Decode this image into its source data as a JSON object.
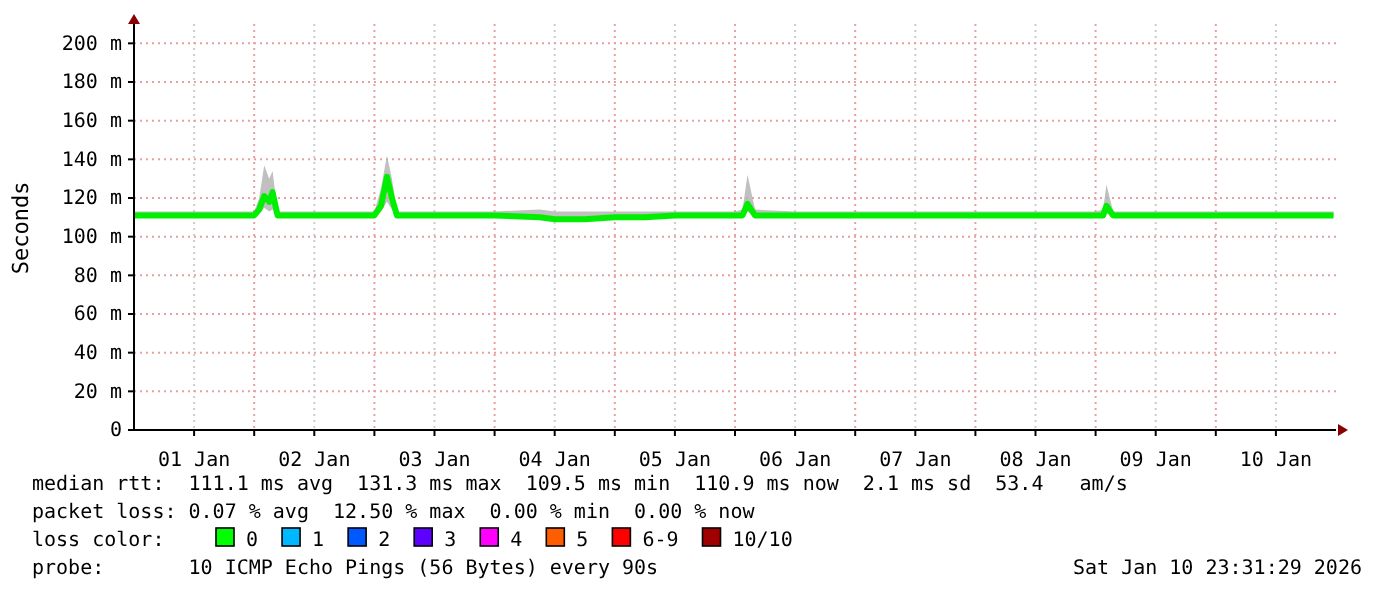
{
  "chart_data": {
    "type": "line",
    "ylabel": "Seconds",
    "grid": true,
    "marker": "none",
    "line_style": "solid",
    "xlim": [
      "2026-01-01T00:00",
      "2026-01-11T00:00"
    ],
    "xticks": [
      {
        "value": "2026-01-01T12:00",
        "label": "01 Jan"
      },
      {
        "value": "2026-01-02T00:00",
        "label": null
      },
      {
        "value": "2026-01-02T12:00",
        "label": "02 Jan"
      },
      {
        "value": "2026-01-03T00:00",
        "label": null
      },
      {
        "value": "2026-01-03T12:00",
        "label": "03 Jan"
      },
      {
        "value": "2026-01-04T00:00",
        "label": null
      },
      {
        "value": "2026-01-04T12:00",
        "label": "04 Jan"
      },
      {
        "value": "2026-01-05T00:00",
        "label": null
      },
      {
        "value": "2026-01-05T12:00",
        "label": "05 Jan"
      },
      {
        "value": "2026-01-06T00:00",
        "label": null
      },
      {
        "value": "2026-01-06T12:00",
        "label": "06 Jan"
      },
      {
        "value": "2026-01-07T00:00",
        "label": null
      },
      {
        "value": "2026-01-07T12:00",
        "label": "07 Jan"
      },
      {
        "value": "2026-01-08T00:00",
        "label": null
      },
      {
        "value": "2026-01-08T12:00",
        "label": "08 Jan"
      },
      {
        "value": "2026-01-09T00:00",
        "label": null
      },
      {
        "value": "2026-01-09T12:00",
        "label": "09 Jan"
      },
      {
        "value": "2026-01-10T00:00",
        "label": null
      },
      {
        "value": "2026-01-10T12:00",
        "label": "10 Jan"
      }
    ],
    "ylim": [
      0,
      210
    ],
    "yticks": [
      0,
      {
        "value": 20,
        "label": "20 m"
      },
      {
        "value": 40,
        "label": "40 m"
      },
      {
        "value": 60,
        "label": "60 m"
      },
      {
        "value": 80,
        "label": "80 m"
      },
      {
        "value": 100,
        "label": "100 m"
      },
      {
        "value": 120,
        "label": "120 m"
      },
      {
        "value": 140,
        "label": "140 m"
      },
      {
        "value": 160,
        "label": "160 m"
      },
      {
        "value": 180,
        "label": "180 m"
      },
      {
        "value": 200,
        "label": "200 m"
      }
    ],
    "series": [
      {
        "color": "#00ee00",
        "x": [
          "2026-01-01T00:00",
          "2026-01-01T12:00",
          "2026-01-02T00:00",
          "2026-01-02T01:00",
          "2026-01-02T02:00",
          "2026-01-02T03:00",
          "2026-01-02T03:40",
          "2026-01-02T04:40",
          "2026-01-02T12:00",
          "2026-01-03T00:00",
          "2026-01-03T01:20",
          "2026-01-03T02:30",
          "2026-01-03T03:30",
          "2026-01-03T04:30",
          "2026-01-03T12:00",
          "2026-01-04T00:00",
          "2026-01-04T09:00",
          "2026-01-04T12:00",
          "2026-01-04T18:00",
          "2026-01-05T00:00",
          "2026-01-05T06:00",
          "2026-01-05T12:00",
          "2026-01-06T00:00",
          "2026-01-06T01:30",
          "2026-01-06T02:30",
          "2026-01-06T04:00",
          "2026-01-06T12:00",
          "2026-01-07T00:00",
          "2026-01-07T12:00",
          "2026-01-08T00:00",
          "2026-01-08T12:00",
          "2026-01-09T00:00",
          "2026-01-09T01:30",
          "2026-01-09T02:10",
          "2026-01-09T03:30",
          "2026-01-09T12:00",
          "2026-01-10T00:00",
          "2026-01-10T12:00",
          "2026-01-10T23:30"
        ],
        "values": [
          111,
          111,
          111,
          114,
          121,
          118,
          123,
          111,
          111,
          111,
          116,
          131,
          120,
          111,
          111,
          111,
          110,
          109,
          109,
          110,
          110,
          111,
          111,
          111,
          117,
          111,
          111,
          111,
          111,
          111,
          111,
          111,
          111,
          116,
          111,
          111,
          111,
          111,
          111
        ],
        "lower": [
          110,
          110,
          110,
          112,
          115,
          113,
          114,
          110,
          110,
          110,
          113,
          118,
          114,
          110,
          110,
          110,
          109,
          108,
          108,
          109,
          109,
          110,
          110,
          110,
          113,
          110,
          110,
          110,
          110,
          110,
          110,
          110,
          110,
          112,
          110,
          110,
          110,
          110,
          110
        ],
        "upper": [
          113,
          113,
          113,
          120,
          137,
          130,
          134,
          113,
          113,
          113,
          125,
          142,
          130,
          113,
          113,
          113,
          114,
          113,
          113,
          113,
          113,
          113,
          113,
          114,
          132,
          114,
          113,
          113,
          113,
          113,
          113,
          113,
          114,
          127,
          113,
          113,
          113,
          113,
          113
        ]
      }
    ],
    "annotations": [
      "median rtt:  111.1 ms avg  131.3 ms max  109.5 ms min  110.9 ms now  2.1 ms sd  53.4   am/s",
      "packet loss: 0.07 % avg  12.50 % max  0.00 % min  0.00 % now",
      "loss color:",
      "0",
      "1",
      "2",
      "3",
      "4",
      "5",
      "6-9",
      "10/10",
      "probe:       10 ICMP Echo Pings (56 Bytes) every 90s",
      "Sat Jan 10 23:31:29 2026"
    ]
  }
}
